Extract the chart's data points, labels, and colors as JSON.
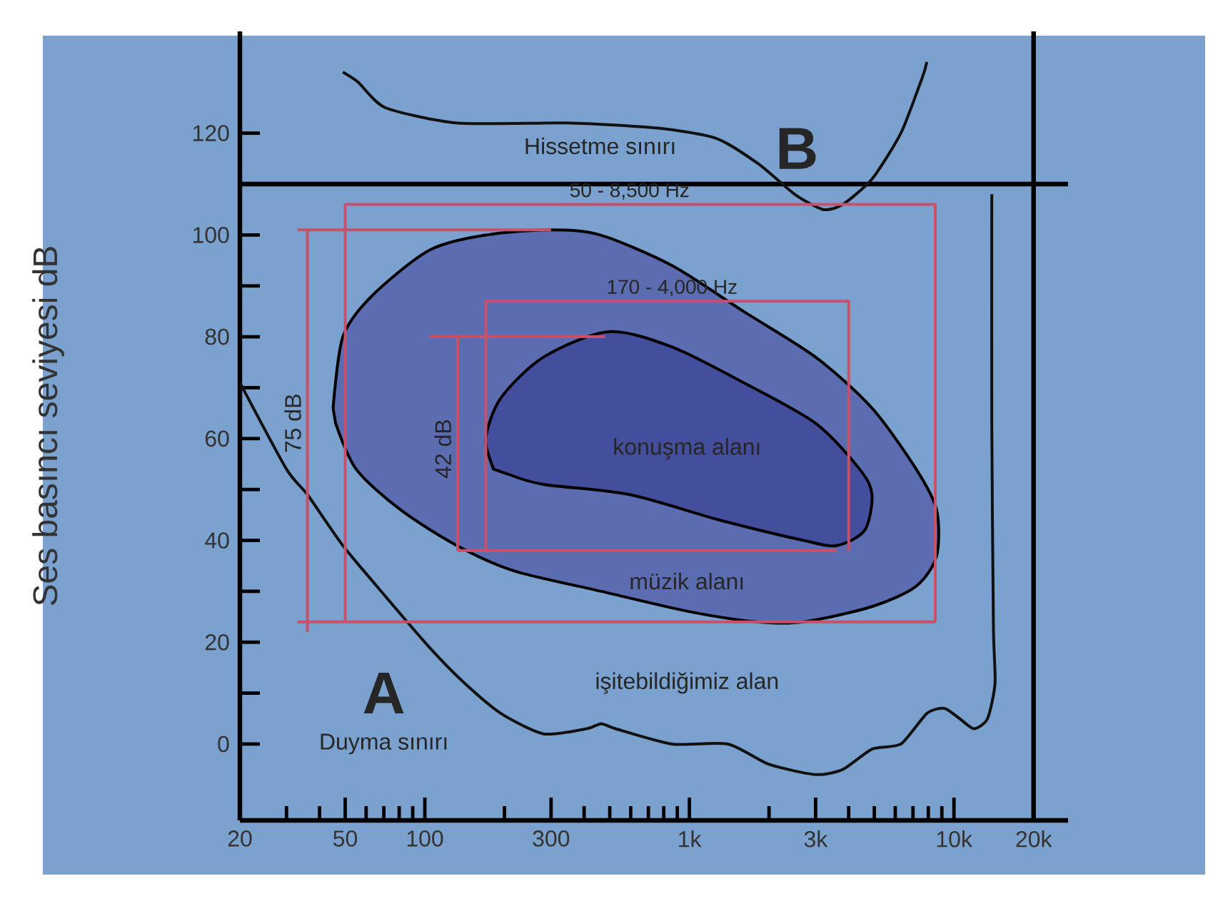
{
  "chart_data": {
    "type": "line",
    "ylabel": "Ses basıncı seviyesi dB",
    "log": "x",
    "xlim": [
      20,
      27000
    ],
    "ylim": [
      -15,
      140
    ],
    "xticks": [
      20,
      {
        "value": 30,
        "label": null
      },
      {
        "value": 40,
        "label": null
      },
      50,
      {
        "value": 60,
        "label": null
      },
      {
        "value": 70,
        "label": null
      },
      {
        "value": 80,
        "label": null
      },
      {
        "value": 90,
        "label": null
      },
      100,
      {
        "value": 200,
        "label": null
      },
      300,
      {
        "value": 400,
        "label": null
      },
      {
        "value": 500,
        "label": null
      },
      {
        "value": 600,
        "label": null
      },
      {
        "value": 700,
        "label": null
      },
      {
        "value": 800,
        "label": null
      },
      {
        "value": 900,
        "label": null
      },
      {
        "value": 1000,
        "label": "1k"
      },
      {
        "value": 2000,
        "label": null
      },
      {
        "value": 3000,
        "label": "3k"
      },
      {
        "value": 4000,
        "label": null
      },
      {
        "value": 5000,
        "label": null
      },
      {
        "value": 6000,
        "label": null
      },
      {
        "value": 7000,
        "label": null
      },
      {
        "value": 8000,
        "label": null
      },
      {
        "value": 9000,
        "label": null
      },
      {
        "value": 10000,
        "label": "10k"
      },
      {
        "value": 20000,
        "label": "20k"
      }
    ],
    "yticks": [
      0,
      {
        "value": 10,
        "label": null
      },
      20,
      {
        "value": 30,
        "label": null
      },
      40,
      {
        "value": 50,
        "label": null
      },
      60,
      {
        "value": 70,
        "label": null
      },
      80,
      {
        "value": 90,
        "label": null
      },
      100,
      {
        "value": 110,
        "label": null
      },
      120
    ],
    "grid": false,
    "marker": "none",
    "ref_lines": [
      {
        "axis": "y",
        "value": 110,
        "color": "#000000"
      },
      {
        "axis": "x",
        "value": 20000,
        "color": "#000000"
      }
    ],
    "series": [
      {
        "type": "area",
        "color": "#5b6db0",
        "x": [
          45,
          49,
          63,
          104,
          171,
          300,
          460,
          860,
          1600,
          3000,
          4900,
          7200,
          8600,
          8600,
          7200,
          4900,
          2700,
          1800,
          1000,
          464,
          218,
          132,
          81,
          55,
          46
        ],
        "values": [
          66,
          80,
          88,
          97,
          100,
          101,
          100,
          94,
          85,
          76,
          66,
          54,
          46,
          37,
          31,
          27,
          24,
          24,
          26,
          30,
          34,
          39,
          46,
          54,
          63
        ]
      },
      {
        "type": "area",
        "color": "#434f9c",
        "x": [
          182,
          170,
          194,
          281,
          495,
          860,
          1600,
          3000,
          4400,
          4900,
          4600,
          3600,
          2700,
          1300,
          594,
          281,
          207
        ],
        "values": [
          54,
          60,
          68,
          76,
          81,
          78,
          71,
          63,
          54,
          49,
          42,
          39,
          40,
          44,
          49,
          51,
          53
        ]
      },
      {
        "color": "#111111",
        "x": [
          20,
          30,
          36,
          49,
          71,
          104,
          141,
          194,
          281,
          409,
          464,
          526,
          860,
          1400,
          2000,
          3000,
          3800,
          4900,
          6300,
          7900,
          9200,
          10500,
          11900,
          13400,
          14300,
          14100,
          13900,
          13900
        ],
        "values": [
          71,
          54,
          49,
          39,
          29,
          19,
          12,
          6,
          2,
          3,
          4,
          3,
          0,
          0,
          -4,
          -6,
          -5,
          -1,
          0,
          6,
          7,
          5,
          3,
          5,
          12,
          23,
          63,
          108
        ]
      },
      {
        "color": "#111111",
        "x": [
          49,
          56,
          71,
          133,
          359,
          762,
          1260,
          1820,
          2500,
          3200,
          3800,
          4900,
          6300,
          7600,
          7900
        ],
        "values": [
          132,
          130,
          125,
          122,
          122,
          121,
          119,
          114,
          108,
          105,
          106,
          111,
          120,
          131,
          134
        ]
      },
      {
        "color": "#c8506a",
        "x": [
          50,
          50,
          8500,
          8500
        ],
        "values": [
          24,
          106,
          106,
          24
        ]
      },
      {
        "color": "#c8506a",
        "x": [
          170,
          170,
          4000,
          4000
        ],
        "values": [
          38,
          87,
          87,
          38
        ]
      },
      {
        "color": "#c8506a",
        "x": [
          300,
          33
        ],
        "values": [
          101,
          101
        ]
      },
      {
        "color": "#c8506a",
        "x": [
          36,
          36
        ],
        "values": [
          101,
          22
        ]
      },
      {
        "color": "#c8506a",
        "x": [
          33,
          8500
        ],
        "values": [
          24,
          24
        ]
      },
      {
        "color": "#c8506a",
        "x": [
          480,
          104
        ],
        "values": [
          80,
          80
        ]
      },
      {
        "color": "#c8506a",
        "x": [
          133,
          133
        ],
        "values": [
          80,
          38
        ]
      },
      {
        "color": "#c8506a",
        "x": [
          133,
          3600
        ],
        "values": [
          38,
          38
        ]
      }
    ],
    "annotations": [
      "Hissetme sınırı",
      "B",
      {
        "text": "50 - 8,500 Hz",
        "x": 594,
        "y": 106
      },
      {
        "text": "170 - 4,000 Hz",
        "x": 860,
        "y": 87
      },
      {
        "text": "75 dB",
        "x": 36,
        "y": 63
      },
      {
        "text": "42 dB",
        "x": 133,
        "y": 58
      },
      "konuşma alanı",
      "müzik alanı",
      "işitebildiğimiz alan",
      "A",
      "Duyma sınırı"
    ]
  }
}
